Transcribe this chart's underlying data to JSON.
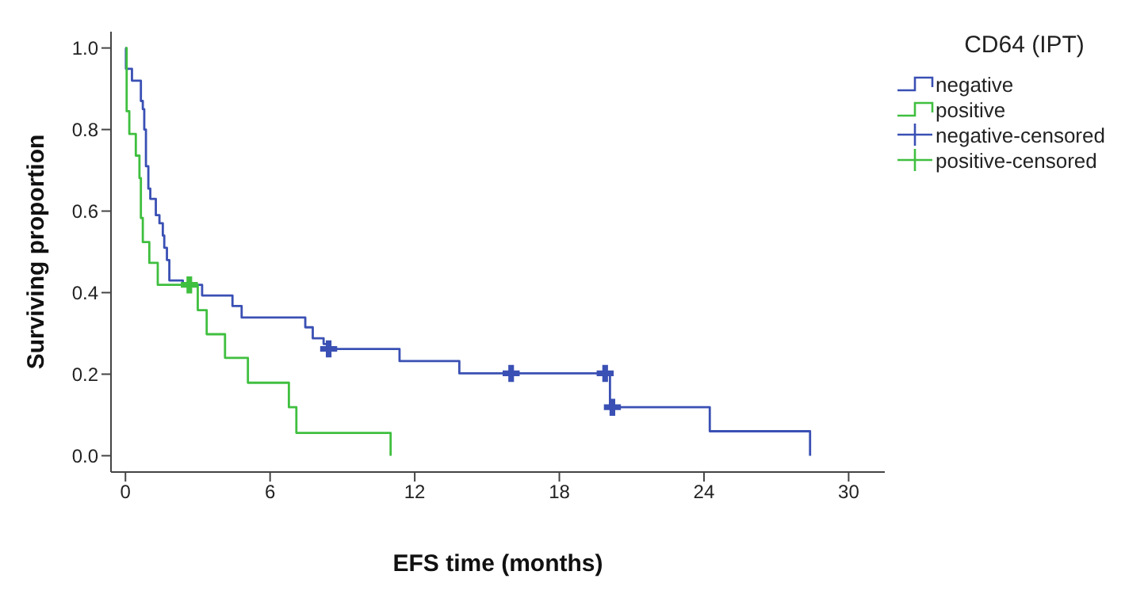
{
  "chart_data": {
    "type": "step",
    "xlabel": "EFS time (months)",
    "ylabel": "Surviving proportion",
    "legend_title": "CD64 (IPT)",
    "legend": "top right",
    "grid": false,
    "xlim": [
      -0.6,
      31.5
    ],
    "xticks": [
      0,
      6,
      12,
      18,
      24,
      30
    ],
    "ylim": [
      -0.04,
      1.04
    ],
    "yticks": [
      {
        "value": 0,
        "label": "0.0"
      },
      {
        "value": 0.2,
        "label": "0.2"
      },
      {
        "value": 0.4,
        "label": "0.4"
      },
      {
        "value": 0.6,
        "label": "0.6"
      },
      {
        "value": 0.8,
        "label": "0.8"
      },
      {
        "value": 1,
        "label": "1.0"
      }
    ],
    "series": [
      {
        "name": "negative",
        "marker": "none",
        "color": "#3a50b4",
        "x": [
          0,
          0.02,
          0.27,
          0.64,
          0.72,
          0.78,
          0.85,
          0.95,
          1.03,
          1.26,
          1.41,
          1.55,
          1.61,
          1.72,
          1.82,
          2.38,
          3.18,
          4.44,
          4.82,
          7.46,
          7.77,
          8.22,
          8.39,
          11.37,
          13.85,
          20.1,
          24.24,
          28.4,
          28.4
        ],
        "values": [
          1,
          0.949,
          0.92,
          0.87,
          0.85,
          0.8,
          0.71,
          0.655,
          0.63,
          0.59,
          0.57,
          0.54,
          0.51,
          0.48,
          0.43,
          0.419,
          0.393,
          0.367,
          0.339,
          0.315,
          0.288,
          0.274,
          0.262,
          0.232,
          0.202,
          0.119,
          0.06,
          0,
          0
        ]
      },
      {
        "name": "positive",
        "marker": "none",
        "color": "#3fbf3f",
        "x": [
          0,
          0.05,
          0.16,
          0.43,
          0.58,
          0.64,
          0.72,
          0.99,
          1.34,
          3.0,
          3.37,
          4.13,
          5.08,
          6.78,
          7.09,
          11.0,
          11.0
        ],
        "values": [
          1,
          0.845,
          0.789,
          0.736,
          0.681,
          0.583,
          0.524,
          0.473,
          0.419,
          0.357,
          0.298,
          0.24,
          0.179,
          0.119,
          0.056,
          0,
          0
        ]
      },
      {
        "name": "negative-censored",
        "type": "scatter",
        "marker": "cross",
        "color": "#3a50b4",
        "x": [
          8.43,
          16.0,
          19.9,
          20.2
        ],
        "values": [
          0.262,
          0.202,
          0.202,
          0.119
        ]
      },
      {
        "name": "positive-censored",
        "type": "scatter",
        "marker": "cross",
        "color": "#3fbf3f",
        "x": [
          2.65
        ],
        "values": [
          0.419
        ]
      }
    ]
  }
}
